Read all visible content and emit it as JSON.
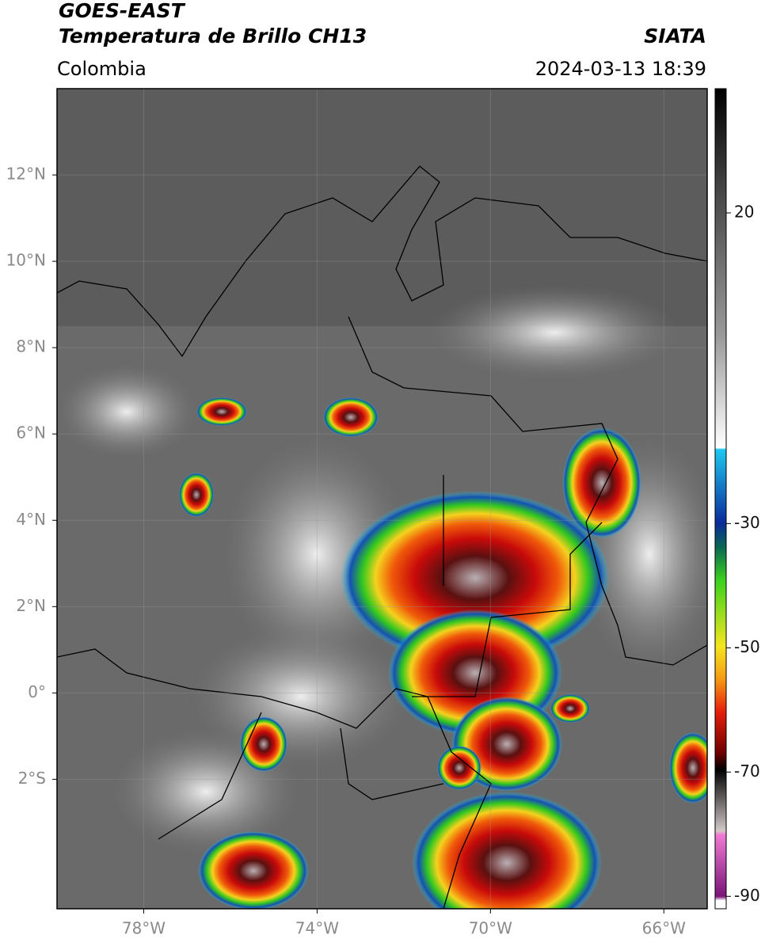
{
  "header": {
    "title_line1": "GOES-EAST",
    "title_line2": "Temperatura de Brillo CH13",
    "source": "SIATA",
    "region": "Colombia",
    "datetime": "2024-03-13 18:39"
  },
  "map": {
    "xlim": [
      -80,
      -65
    ],
    "ylim": [
      -5,
      14
    ],
    "lat_ticks": [
      {
        "value": 12,
        "label": "12°N"
      },
      {
        "value": 10,
        "label": "10°N"
      },
      {
        "value": 8,
        "label": "8°N"
      },
      {
        "value": 6,
        "label": "6°N"
      },
      {
        "value": 4,
        "label": "4°N"
      },
      {
        "value": 2,
        "label": "2°N"
      },
      {
        "value": 0,
        "label": "0°"
      },
      {
        "value": -2,
        "label": "2°S"
      }
    ],
    "lon_ticks": [
      {
        "value": -78,
        "label": "78°W"
      },
      {
        "value": -74,
        "label": "74°W"
      },
      {
        "value": -70,
        "label": "70°W"
      },
      {
        "value": -66,
        "label": "66°W"
      }
    ]
  },
  "colorbar": {
    "clim": [
      -92,
      40
    ],
    "ticks": [
      20,
      -30,
      -50,
      -70,
      -90
    ]
  }
}
